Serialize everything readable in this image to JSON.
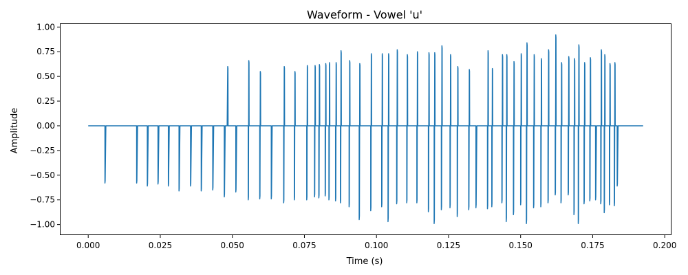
{
  "chart_data": {
    "type": "line",
    "title": "Waveform - Vowel 'u'",
    "xlabel": "Time (s)",
    "ylabel": "Amplitude",
    "xlim": [
      -0.0096,
      0.2021
    ],
    "ylim": [
      -1.1,
      1.03
    ],
    "x_ticks": [
      0.0,
      0.025,
      0.05,
      0.075,
      0.1,
      0.125,
      0.15,
      0.175,
      0.2
    ],
    "x_tick_labels": [
      "0.000",
      "0.025",
      "0.050",
      "0.075",
      "0.100",
      "0.125",
      "0.150",
      "0.175",
      "0.200"
    ],
    "y_ticks": [
      -1.0,
      -0.75,
      -0.5,
      -0.25,
      0.0,
      0.25,
      0.5,
      0.75,
      1.0
    ],
    "y_tick_labels": [
      "−1.00",
      "−0.75",
      "−0.50",
      "−0.25",
      "0.00",
      "0.25",
      "0.50",
      "0.75",
      "1.00"
    ],
    "grid": false,
    "line_color": "#1f77b4",
    "duration": 0.1925,
    "series": [
      {
        "events": [
          [
            0.0058,
            0,
            -0.58
          ],
          [
            0.0168,
            0,
            -0.58
          ],
          [
            0.0205,
            0,
            -0.61
          ],
          [
            0.0242,
            0,
            -0.59
          ],
          [
            0.0278,
            0,
            -0.61
          ],
          [
            0.0315,
            0,
            -0.66
          ],
          [
            0.0355,
            0,
            -0.61
          ],
          [
            0.0392,
            0,
            -0.66
          ],
          [
            0.0432,
            0,
            -0.65
          ],
          [
            0.0472,
            0,
            -0.72
          ],
          [
            0.0482,
            0.6,
            0
          ],
          [
            0.0512,
            0,
            -0.67
          ],
          [
            0.0555,
            0.66,
            -0.75
          ],
          [
            0.0595,
            0.55,
            -0.74
          ],
          [
            0.0635,
            0.0,
            -0.74
          ],
          [
            0.0678,
            0.6,
            -0.78
          ],
          [
            0.0715,
            0.55,
            -0.75
          ],
          [
            0.0758,
            0.61,
            -0.75
          ],
          [
            0.0785,
            0.61,
            -0.72
          ],
          [
            0.08,
            0.62,
            -0.73
          ],
          [
            0.0822,
            0.63,
            -0.71
          ],
          [
            0.0835,
            0.64,
            -0.75
          ],
          [
            0.0858,
            0.64,
            -0.76
          ],
          [
            0.0875,
            0.76,
            -0.78
          ],
          [
            0.0905,
            0.66,
            -0.82
          ],
          [
            0.094,
            0.63,
            -0.95
          ],
          [
            0.098,
            0.73,
            -0.86
          ],
          [
            0.1018,
            0.73,
            -0.82
          ],
          [
            0.104,
            0.73,
            -0.97
          ],
          [
            0.107,
            0.77,
            -0.79
          ],
          [
            0.1105,
            0.72,
            -0.78
          ],
          [
            0.114,
            0.75,
            -0.78
          ],
          [
            0.118,
            0.74,
            -0.87
          ],
          [
            0.12,
            0.74,
            -0.99
          ],
          [
            0.1225,
            0.81,
            -0.85
          ],
          [
            0.1255,
            0.72,
            -0.83
          ],
          [
            0.128,
            0.6,
            -0.92
          ],
          [
            0.132,
            0.57,
            -0.85
          ],
          [
            0.1345,
            0.0,
            -0.83
          ],
          [
            0.1385,
            0.76,
            -0.84
          ],
          [
            0.14,
            0.58,
            -0.82
          ],
          [
            0.1435,
            0.72,
            -0.78
          ],
          [
            0.145,
            0.72,
            -0.97
          ],
          [
            0.1475,
            0.65,
            -0.9
          ],
          [
            0.15,
            0.73,
            -0.8
          ],
          [
            0.152,
            0.84,
            -0.99
          ],
          [
            0.1545,
            0.72,
            -0.83
          ],
          [
            0.157,
            0.68,
            -0.82
          ],
          [
            0.1595,
            0.77,
            -0.78
          ],
          [
            0.162,
            0.92,
            -0.7
          ],
          [
            0.164,
            0.64,
            -0.78
          ],
          [
            0.1665,
            0.7,
            -0.7
          ],
          [
            0.1685,
            0.68,
            -0.9
          ],
          [
            0.17,
            0.82,
            -0.99
          ],
          [
            0.172,
            0.64,
            -0.79
          ],
          [
            0.174,
            0.69,
            -0.76
          ],
          [
            0.176,
            0.0,
            -0.75
          ],
          [
            0.1778,
            0.77,
            -0.79
          ],
          [
            0.179,
            0.72,
            -0.88
          ],
          [
            0.1808,
            0.63,
            -0.8
          ],
          [
            0.1825,
            0.64,
            -0.81
          ],
          [
            0.1835,
            0.0,
            -0.61
          ]
        ]
      }
    ]
  }
}
